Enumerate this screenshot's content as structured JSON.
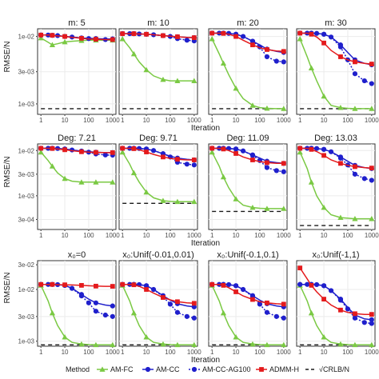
{
  "chart_data": {
    "type": "line",
    "layout": "facet_grid",
    "x_ticks": [
      "1",
      "10",
      "100",
      "1000"
    ],
    "xlabel": "Iteration",
    "ylabel": "RMSE/N",
    "x_scale": "log10",
    "y_scale": "log10",
    "xlim": [
      1,
      1000
    ],
    "grid": true,
    "legend": {
      "position": "bottom",
      "title": "Method",
      "entries": [
        {
          "label": "AM-FC",
          "color": "#7ac943",
          "marker": "triangle",
          "line": "solid"
        },
        {
          "label": "AM-CC",
          "color": "#1f1fcc",
          "marker": "circle",
          "line": "solid"
        },
        {
          "label": "AM-CC-AG100",
          "color": "#1f1fcc",
          "marker": "circle",
          "line": "dotted"
        },
        {
          "label": "ADMM-H",
          "color": "#e41a1c",
          "marker": "square",
          "line": "solid"
        },
        {
          "label": "√CRLB/N",
          "color": "#1a1a1a",
          "marker": "none",
          "line": "dashed"
        }
      ]
    },
    "x_points": [
      1,
      2,
      3,
      5,
      10,
      20,
      50,
      100,
      200,
      500,
      1000
    ],
    "rows": [
      {
        "y_ticks": [
          "1e-03",
          "3e-03",
          "1e-02"
        ],
        "y_tick_values": [
          0.001,
          0.003,
          0.01
        ],
        "ylim": [
          0.0007,
          0.013
        ],
        "panels": [
          {
            "title": "m: 5",
            "series": {
              "AM-FC": [
                0.0095,
                0.0082,
                0.0075,
                0.0078,
                0.0083,
                0.0085,
                0.0087,
                0.0088,
                0.0088,
                0.0088,
                0.0088
              ],
              "AM-CC": [
                0.0105,
                0.0105,
                0.0104,
                0.0103,
                0.01,
                0.0098,
                0.0095,
                0.0094,
                0.0093,
                0.0092,
                0.0092
              ],
              "AM-CC-AG100": [
                0.0105,
                0.0105,
                0.0104,
                0.0103,
                0.01,
                0.0098,
                0.0095,
                0.0093,
                0.0091,
                0.009,
                0.009
              ],
              "ADMM-H": [
                0.0105,
                0.0105,
                0.0104,
                0.0102,
                0.01,
                0.0097,
                0.0094,
                0.0092,
                0.0091,
                0.009,
                0.009
              ],
              "√CRLB/N": 0.00085
            }
          },
          {
            "title": "m: 10",
            "series": {
              "AM-FC": [
                0.0092,
                0.0068,
                0.0055,
                0.0042,
                0.0032,
                0.0026,
                0.0023,
                0.0022,
                0.0022,
                0.0022,
                0.0022
              ],
              "AM-CC": [
                0.011,
                0.011,
                0.011,
                0.0109,
                0.0108,
                0.0106,
                0.0103,
                0.0101,
                0.0099,
                0.0097,
                0.0096
              ],
              "AM-CC-AG100": [
                0.011,
                0.011,
                0.011,
                0.0109,
                0.0108,
                0.0106,
                0.0103,
                0.01,
                0.0093,
                0.0088,
                0.0086
              ],
              "ADMM-H": [
                0.011,
                0.011,
                0.011,
                0.0109,
                0.0108,
                0.0106,
                0.0103,
                0.0101,
                0.0099,
                0.0097,
                0.0096
              ],
              "√CRLB/N": 0.00085
            }
          },
          {
            "title": "m: 20",
            "series": {
              "AM-FC": [
                0.0092,
                0.0055,
                0.004,
                0.0027,
                0.0017,
                0.0012,
                0.00095,
                0.00088,
                0.00086,
                0.00085,
                0.00085
              ],
              "AM-CC": [
                0.0112,
                0.0112,
                0.0112,
                0.0111,
                0.0108,
                0.01,
                0.0085,
                0.0075,
                0.0065,
                0.006,
                0.0058
              ],
              "AM-CC-AG100": [
                0.0112,
                0.0112,
                0.0112,
                0.0111,
                0.0108,
                0.01,
                0.0085,
                0.007,
                0.005,
                0.0043,
                0.0042
              ],
              "ADMM-H": [
                0.0112,
                0.0112,
                0.0111,
                0.0108,
                0.01,
                0.0088,
                0.0075,
                0.0068,
                0.0064,
                0.0061,
                0.006
              ],
              "√CRLB/N": 0.00085
            }
          },
          {
            "title": "m: 30",
            "series": {
              "AM-FC": [
                0.0092,
                0.005,
                0.0034,
                0.0022,
                0.0013,
                0.00095,
                0.00088,
                0.00086,
                0.00085,
                0.00085,
                0.00085
              ],
              "AM-CC": [
                0.0112,
                0.0112,
                0.0112,
                0.0111,
                0.0108,
                0.0098,
                0.0075,
                0.0058,
                0.0045,
                0.004,
                0.0038
              ],
              "AM-CC-AG100": [
                0.0112,
                0.0112,
                0.0112,
                0.0111,
                0.0108,
                0.0098,
                0.007,
                0.0045,
                0.0028,
                0.0022,
                0.002
              ],
              "ADMM-H": [
                0.0112,
                0.0112,
                0.0108,
                0.0098,
                0.008,
                0.0062,
                0.005,
                0.0045,
                0.0042,
                0.004,
                0.0039
              ],
              "√CRLB/N": 0.00085
            }
          }
        ]
      },
      {
        "y_ticks": [
          "3e-04",
          "1e-03",
          "3e-03",
          "1e-02"
        ],
        "y_tick_values": [
          0.0003,
          0.001,
          0.003,
          0.01
        ],
        "ylim": [
          0.00018,
          0.014
        ],
        "panels": [
          {
            "title": "Deg: 7.21",
            "series": {
              "AM-FC": [
                0.0092,
                0.006,
                0.0045,
                0.0032,
                0.0024,
                0.0021,
                0.002,
                0.002,
                0.002,
                0.002,
                0.002
              ],
              "AM-CC": [
                0.0112,
                0.0112,
                0.0112,
                0.0111,
                0.0108,
                0.0103,
                0.0097,
                0.0094,
                0.0092,
                0.009,
                0.009
              ],
              "AM-CC-AG100": [
                0.0112,
                0.0112,
                0.0112,
                0.0111,
                0.0108,
                0.0103,
                0.0097,
                0.0092,
                0.0084,
                0.008,
                0.0079
              ],
              "ADMM-H": [
                0.0112,
                0.0112,
                0.0111,
                0.0108,
                0.0104,
                0.0099,
                0.0094,
                0.0092,
                0.0091,
                0.009,
                0.009
              ],
              "√CRLB/N": null
            }
          },
          {
            "title": "Deg: 9.71",
            "series": {
              "AM-FC": [
                0.0092,
                0.005,
                0.0032,
                0.002,
                0.0012,
                0.0009,
                0.00078,
                0.00075,
                0.00074,
                0.00074,
                0.00074
              ],
              "AM-CC": [
                0.0112,
                0.0112,
                0.0112,
                0.0111,
                0.0108,
                0.01,
                0.0085,
                0.0075,
                0.0068,
                0.0064,
                0.0062
              ],
              "AM-CC-AG100": [
                0.0112,
                0.0112,
                0.0112,
                0.0111,
                0.0108,
                0.01,
                0.0085,
                0.0072,
                0.0055,
                0.005,
                0.0048
              ],
              "ADMM-H": [
                0.0112,
                0.0112,
                0.011,
                0.0104,
                0.0093,
                0.0082,
                0.0072,
                0.0067,
                0.0064,
                0.0062,
                0.0062
              ],
              "√CRLB/N": 0.00068
            }
          },
          {
            "title": "Deg: 11.09",
            "series": {
              "AM-FC": [
                0.0092,
                0.0045,
                0.0026,
                0.0015,
                0.00085,
                0.00062,
                0.00055,
                0.00053,
                0.00052,
                0.00052,
                0.00052
              ],
              "AM-CC": [
                0.0112,
                0.0112,
                0.0112,
                0.0111,
                0.0108,
                0.0098,
                0.008,
                0.0068,
                0.0058,
                0.0054,
                0.0052
              ],
              "AM-CC-AG100": [
                0.0112,
                0.0112,
                0.0112,
                0.0111,
                0.0108,
                0.0098,
                0.0078,
                0.006,
                0.0042,
                0.0036,
                0.0034
              ],
              "ADMM-H": [
                0.0112,
                0.0112,
                0.0108,
                0.01,
                0.0086,
                0.0072,
                0.0062,
                0.0057,
                0.0054,
                0.0052,
                0.0052
              ],
              "√CRLB/N": 0.00045
            }
          },
          {
            "title": "Deg: 13.03",
            "series": {
              "AM-FC": [
                0.0092,
                0.004,
                0.002,
                0.001,
                0.00055,
                0.00038,
                0.00033,
                0.00032,
                0.00031,
                0.00031,
                0.00031
              ],
              "AM-CC": [
                0.0112,
                0.0112,
                0.0112,
                0.0111,
                0.0106,
                0.0094,
                0.0072,
                0.0058,
                0.0047,
                0.0042,
                0.004
              ],
              "AM-CC-AG100": [
                0.0112,
                0.0112,
                0.0112,
                0.0111,
                0.0106,
                0.0094,
                0.0068,
                0.0048,
                0.003,
                0.0024,
                0.0022
              ],
              "ADMM-H": [
                0.0112,
                0.0112,
                0.0106,
                0.0095,
                0.0078,
                0.0062,
                0.0052,
                0.0047,
                0.0044,
                0.0042,
                0.0041
              ],
              "√CRLB/N": 0.00022
            }
          }
        ]
      },
      {
        "y_ticks": [
          "1e-03",
          "3e-03",
          "1e-02",
          "3e-02"
        ],
        "y_tick_values": [
          0.001,
          0.003,
          0.01,
          0.03
        ],
        "ylim": [
          0.0008,
          0.036
        ],
        "panels": [
          {
            "title": "x₀=0",
            "series": {
              "AM-FC": [
                0.012,
                0.006,
                0.0035,
                0.002,
                0.0012,
                0.00095,
                0.00088,
                0.00086,
                0.00085,
                0.00085,
                0.00085
              ],
              "AM-CC": [
                0.0125,
                0.0125,
                0.0125,
                0.0124,
                0.012,
                0.0105,
                0.008,
                0.0065,
                0.0055,
                0.005,
                0.0048
              ],
              "AM-CC-AG100": [
                0.0125,
                0.0125,
                0.0125,
                0.0124,
                0.012,
                0.0105,
                0.0075,
                0.0055,
                0.0038,
                0.0032,
                0.003
              ],
              "ADMM-H": [
                0.0125,
                0.0125,
                0.0125,
                0.0124,
                0.0123,
                0.0122,
                0.012,
                0.0118,
                0.0116,
                0.0115,
                0.0115
              ],
              "√CRLB/N": 0.00085
            }
          },
          {
            "title": "x₀:Unif(-0.01,0.01)",
            "series": {
              "AM-FC": [
                0.012,
                0.006,
                0.0035,
                0.002,
                0.0012,
                0.00095,
                0.00088,
                0.00086,
                0.00085,
                0.00085,
                0.00085
              ],
              "AM-CC": [
                0.0125,
                0.0125,
                0.0125,
                0.0124,
                0.0118,
                0.01,
                0.0076,
                0.0062,
                0.0053,
                0.0048,
                0.0046
              ],
              "AM-CC-AG100": [
                0.0125,
                0.0125,
                0.0125,
                0.0124,
                0.0118,
                0.01,
                0.0072,
                0.0052,
                0.0036,
                0.003,
                0.0028
              ],
              "ADMM-H": [
                0.0125,
                0.0125,
                0.0123,
                0.0115,
                0.01,
                0.0085,
                0.007,
                0.0063,
                0.0058,
                0.0055,
                0.0054
              ],
              "√CRLB/N": 0.00085
            }
          },
          {
            "title": "x₀:Unif(-0.1,0.1)",
            "series": {
              "AM-FC": [
                0.012,
                0.006,
                0.0035,
                0.002,
                0.0012,
                0.00095,
                0.00088,
                0.00086,
                0.00085,
                0.00085,
                0.00085
              ],
              "AM-CC": [
                0.0125,
                0.0125,
                0.0125,
                0.0124,
                0.0118,
                0.01,
                0.0076,
                0.0062,
                0.0053,
                0.0048,
                0.0046
              ],
              "AM-CC-AG100": [
                0.0125,
                0.0125,
                0.0125,
                0.0124,
                0.0118,
                0.01,
                0.0072,
                0.0052,
                0.0036,
                0.003,
                0.0028
              ],
              "ADMM-H": [
                0.0125,
                0.0125,
                0.012,
                0.0108,
                0.009,
                0.0075,
                0.0064,
                0.0058,
                0.0055,
                0.0053,
                0.0052
              ],
              "√CRLB/N": 0.00085
            }
          },
          {
            "title": "x₀:Unif(-1,1)",
            "series": {
              "AM-FC": [
                0.012,
                0.006,
                0.0035,
                0.002,
                0.0012,
                0.00095,
                0.00088,
                0.00086,
                0.00085,
                0.00085,
                0.00085
              ],
              "AM-CC": [
                0.0125,
                0.0125,
                0.0125,
                0.0124,
                0.0118,
                0.0095,
                0.0065,
                0.0045,
                0.0032,
                0.0027,
                0.0026
              ],
              "AM-CC-AG100": [
                0.0125,
                0.0125,
                0.0125,
                0.0124,
                0.0118,
                0.0095,
                0.0062,
                0.0042,
                0.0028,
                0.0023,
                0.0022
              ],
              "ADMM-H": [
                0.026,
                0.016,
                0.012,
                0.009,
                0.0065,
                0.005,
                0.004,
                0.0036,
                0.0034,
                0.0033,
                0.0033
              ],
              "√CRLB/N": 0.00085
            }
          }
        ]
      }
    ]
  }
}
